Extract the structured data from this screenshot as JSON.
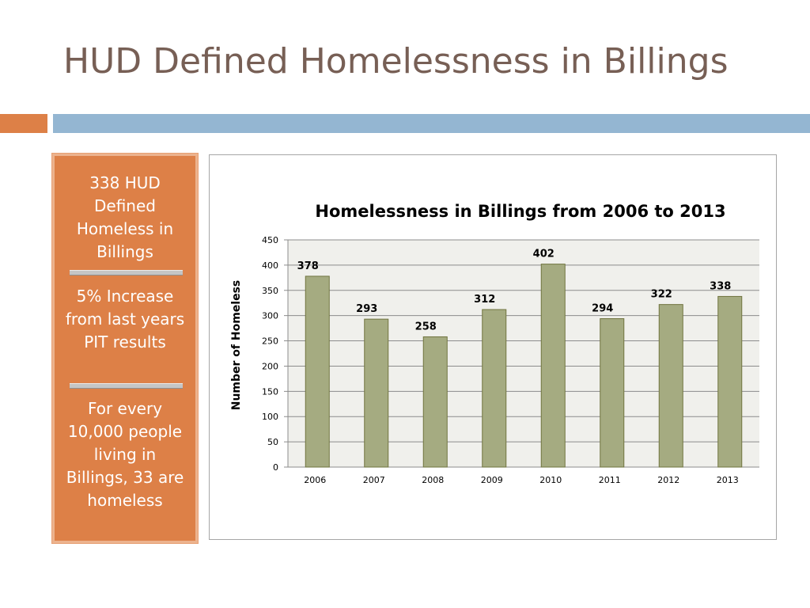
{
  "slide": {
    "title": "HUD Defined Homelessness in Billings"
  },
  "callout": {
    "items": [
      "338 HUD Defined Homeless in Billings",
      "5% Increase from last years PIT results",
      "For every 10,000 people living in Billings, 33 are homeless"
    ]
  },
  "colors": {
    "title": "#775f55",
    "accent_orange": "#dd8047",
    "accent_blue": "#94b6d2",
    "bar": "#a5ab81",
    "plot_background": "#f0f0ec"
  },
  "chart_data": {
    "type": "bar",
    "title": "Homelessness in Billings from 2006 to 2013",
    "xlabel": "",
    "ylabel": "Number of Homeless",
    "categories": [
      "2006",
      "2007",
      "2008",
      "2009",
      "2010",
      "2011",
      "2012",
      "2013"
    ],
    "values": [
      378,
      293,
      258,
      312,
      402,
      294,
      322,
      338
    ],
    "ylim": [
      0,
      450
    ],
    "yticks": [
      0,
      50,
      100,
      150,
      200,
      250,
      300,
      350,
      400,
      450
    ],
    "grid": true,
    "legend": "none",
    "data_labels": true
  }
}
